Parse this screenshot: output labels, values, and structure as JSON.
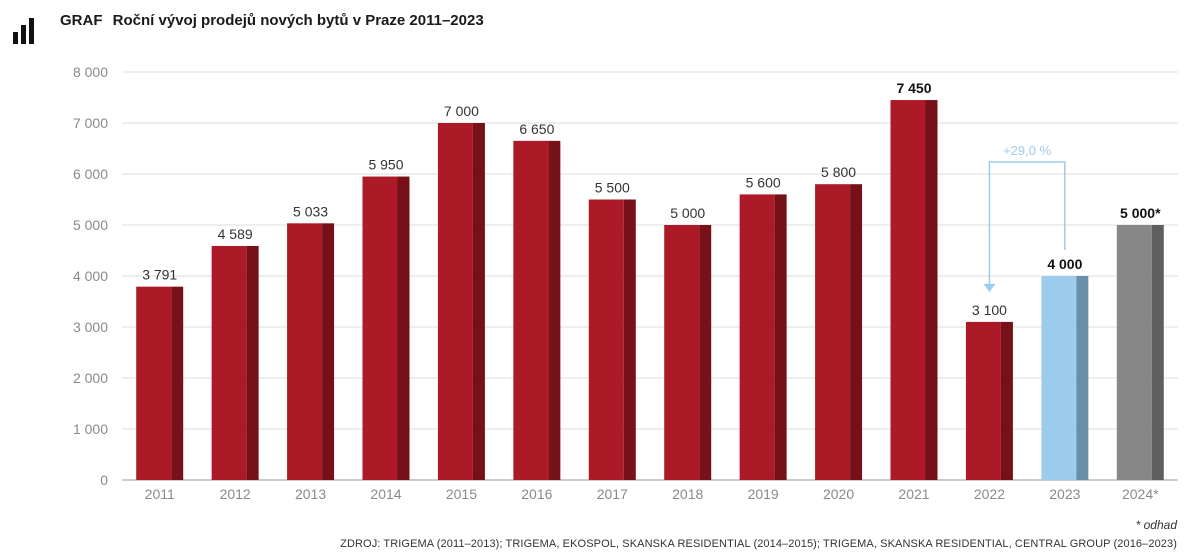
{
  "header": {
    "label": "GRAF",
    "title": "Roční vývoj prodejů nových bytů v Praze 2011–2023",
    "icon": "bar-chart-icon"
  },
  "chart_data": {
    "type": "bar",
    "categories": [
      "2011",
      "2012",
      "2013",
      "2014",
      "2015",
      "2016",
      "2017",
      "2018",
      "2019",
      "2020",
      "2021",
      "2022",
      "2023",
      "2024*"
    ],
    "values": [
      3791,
      4589,
      5033,
      5950,
      7000,
      6650,
      5500,
      5000,
      5600,
      5800,
      7450,
      3100,
      4000,
      5000
    ],
    "value_labels": [
      "3 791",
      "4 589",
      "5 033",
      "5 950",
      "7 000",
      "6 650",
      "5 500",
      "5 000",
      "5 600",
      "5 800",
      "7 450",
      "3 100",
      "4 000",
      "5 000*"
    ],
    "bold_labels": [
      10,
      12,
      13
    ],
    "ylim": [
      0,
      8000
    ],
    "yticks": [
      0,
      1000,
      2000,
      3000,
      4000,
      5000,
      6000,
      7000,
      8000
    ],
    "ytick_labels": [
      "0",
      "1 000",
      "2 000",
      "3 000",
      "4 000",
      "5 000",
      "6 000",
      "7 000",
      "8 000"
    ],
    "grid": true,
    "colors": {
      "default": "#ad1a27",
      "default_side": "#76111a",
      "highlight": "#9dcbee",
      "highlight_side": "#6a8fab",
      "estimate": "#878787",
      "estimate_side": "#5f5f5f",
      "annotation": "#9dcbee"
    },
    "bar_colors": [
      "default",
      "default",
      "default",
      "default",
      "default",
      "default",
      "default",
      "default",
      "default",
      "default",
      "default",
      "default",
      "highlight",
      "estimate"
    ],
    "annotation": {
      "text": "+29,0 %",
      "from": "2023",
      "to": "2022"
    }
  },
  "footnote": "* odhad",
  "source": "ZDROJ: TRIGEMA (2011–2013); TRIGEMA, EKOSPOL, SKANSKA RESIDENTIAL (2014–2015); TRIGEMA, SKANSKA RESIDENTIAL, CENTRAL GROUP (2016–2023)"
}
